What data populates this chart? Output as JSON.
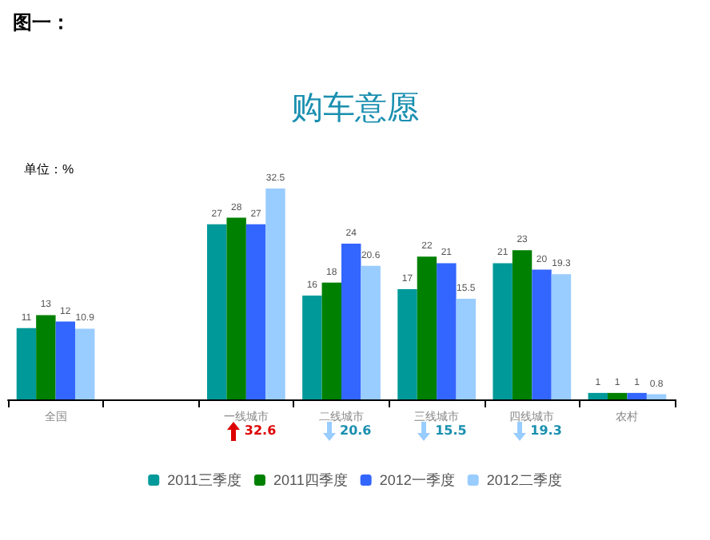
{
  "chart_data": {
    "type": "bar",
    "title": "购车意愿",
    "ylabel": "单位：%",
    "categories": [
      "全国",
      null,
      "一线城市",
      "二线城市",
      "三线城市",
      "四线城市",
      "农村"
    ],
    "series": [
      {
        "name": "2011三季度",
        "color": "#009999",
        "values": [
          11,
          null,
          27,
          16,
          17,
          21,
          1
        ]
      },
      {
        "name": "2011四季度",
        "color": "#008000",
        "values": [
          13,
          null,
          28,
          18,
          22,
          23,
          1
        ]
      },
      {
        "name": "2012一季度",
        "color": "#3366ff",
        "values": [
          12,
          null,
          27,
          24,
          21,
          20,
          1
        ]
      },
      {
        "name": "2012二季度",
        "color": "#99ccff",
        "values": [
          10.9,
          null,
          32.5,
          20.6,
          15.5,
          19.3,
          0.8
        ]
      }
    ],
    "annotations": [
      "图一：",
      "32.6",
      "20.6",
      "15.5",
      "19.3"
    ],
    "data_labels": true,
    "legend": "bottom",
    "grid": false
  }
}
